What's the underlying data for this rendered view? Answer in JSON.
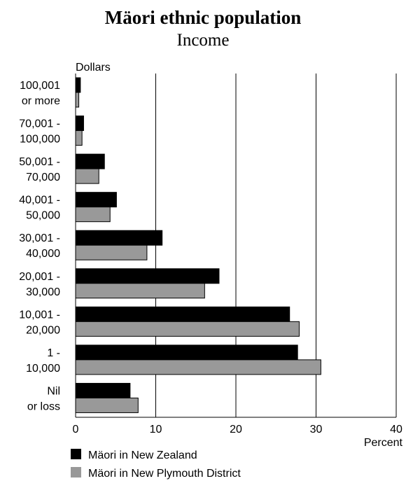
{
  "chart_data": {
    "type": "bar",
    "orientation": "horizontal",
    "title": "Mäori ethnic population",
    "subtitle": "Income",
    "ylabel": "Dollars",
    "xlabel": "Percent",
    "xlim": [
      0,
      40
    ],
    "xticks": [
      0,
      10,
      20,
      30,
      40
    ],
    "grid": true,
    "legend_position": "bottom",
    "categories": [
      [
        "100,001",
        "or more"
      ],
      [
        "70,001 -",
        "100,000"
      ],
      [
        "50,001 -",
        "70,000"
      ],
      [
        "40,001 -",
        "50,000"
      ],
      [
        "30,001 -",
        "40,000"
      ],
      [
        "20,001 -",
        "30,000"
      ],
      [
        "10,001 -",
        "20,000"
      ],
      [
        "1 -",
        "10,000"
      ],
      [
        "Nil",
        "or loss"
      ]
    ],
    "series": [
      {
        "name": "Mäori in New Zealand",
        "color": "#000000",
        "values": [
          0.6,
          1.0,
          3.6,
          5.1,
          10.8,
          17.9,
          26.7,
          27.7,
          6.8
        ]
      },
      {
        "name": "Mäori in New Plymouth District",
        "color": "#999999",
        "values": [
          0.4,
          0.8,
          2.9,
          4.3,
          8.9,
          16.1,
          27.9,
          30.6,
          7.8
        ]
      }
    ]
  }
}
